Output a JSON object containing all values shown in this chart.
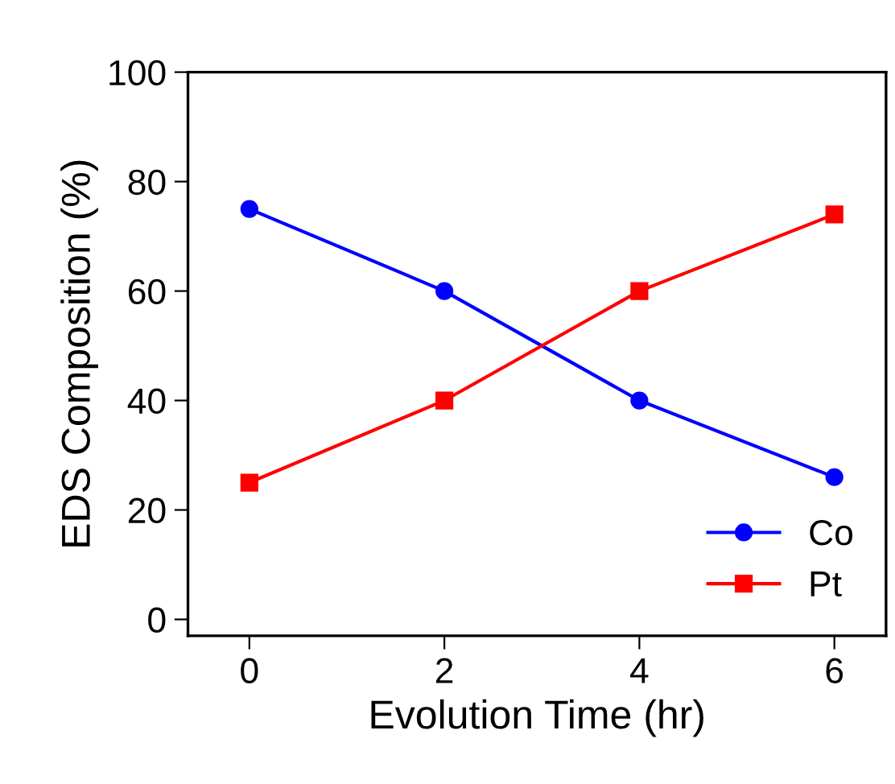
{
  "chart_data": {
    "type": "line",
    "xlabel": "Evolution Time (hr)",
    "ylabel": "EDS Composition (%)",
    "x": [
      0,
      2,
      4,
      6
    ],
    "series": [
      {
        "name": "Co",
        "color": "#0000ff",
        "values": [
          75,
          60,
          40,
          26
        ],
        "marker": "circle"
      },
      {
        "name": "Pt",
        "color": "#ff0000",
        "values": [
          25,
          40,
          60,
          74
        ],
        "marker": "square"
      }
    ],
    "xlim": [
      -0.63,
      6.53
    ],
    "xticks": [
      0,
      2,
      4,
      6
    ],
    "ylim": [
      -3,
      100
    ],
    "yticks": [
      0,
      20,
      40,
      60,
      80,
      100
    ],
    "grid": false,
    "legend": "bottom right",
    "line_style": "solid"
  }
}
